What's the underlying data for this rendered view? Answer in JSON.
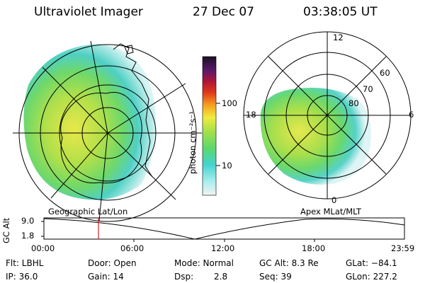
{
  "header": {
    "instrument": "Ultraviolet Imager",
    "date": "27 Dec 07",
    "time": "03:38:05 UT"
  },
  "colorbar": {
    "units": "photon cm⁻²s⁻¹",
    "ticks": [
      "100",
      "10"
    ]
  },
  "geo_panel": {
    "caption": "Geographic Lat/Lon"
  },
  "apex_panel": {
    "caption": "Apex MLat/MLT",
    "lat_labels": [
      "60",
      "70",
      "80"
    ],
    "mlt_labels": [
      "12",
      "18",
      "6",
      "0"
    ]
  },
  "altitude_plot": {
    "ylabel": "GC Alt",
    "yticks": [
      "9.0",
      "1.8"
    ],
    "xticks": [
      "00:00",
      "06:00",
      "12:00",
      "18:00",
      "23:59"
    ],
    "marker_time": "03:38"
  },
  "info": {
    "flt": "Flt: LBHL",
    "ip": "IP: 36.0",
    "door": "Door: Open",
    "gain": "Gain: 14",
    "mode": "Mode: Normal",
    "dsp_label": "Dsp:",
    "dsp_value": "2.8",
    "gc_alt": "GC Alt: 8.3 Re",
    "seq": "Seq: 39",
    "glat": "GLat: −84.1",
    "glon": "GLon: 227.2"
  }
}
